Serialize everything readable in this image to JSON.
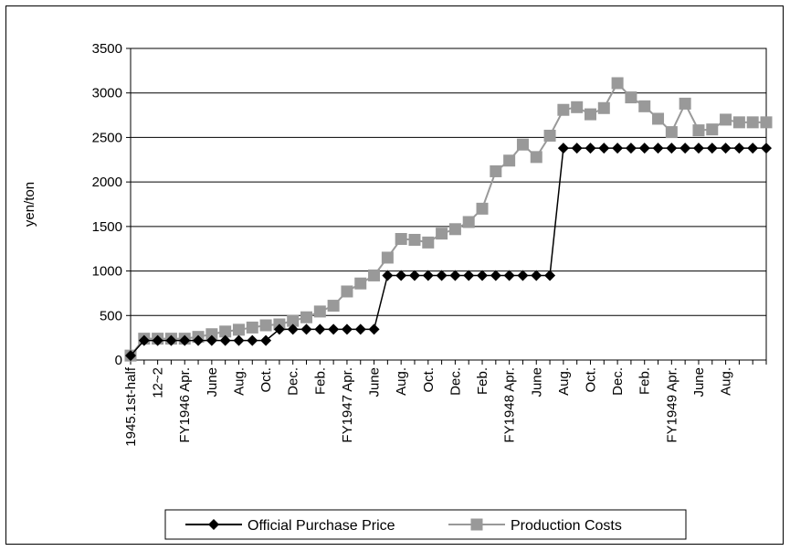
{
  "chart_data": {
    "type": "line",
    "ylabel": "yen/ton",
    "xlabel": "",
    "ylim": [
      0,
      3500
    ],
    "yticks": [
      0,
      500,
      1000,
      1500,
      2000,
      2500,
      3000,
      3500
    ],
    "grid": "horizontal",
    "legend_position": "bottom",
    "category_count": 48,
    "x_tick_labels": [
      {
        "i": 0,
        "label": "1945.1st-half"
      },
      {
        "i": 2,
        "label": "12~2"
      },
      {
        "i": 4,
        "label": "FY1946 Apr."
      },
      {
        "i": 6,
        "label": "June"
      },
      {
        "i": 8,
        "label": "Aug."
      },
      {
        "i": 10,
        "label": "Oct."
      },
      {
        "i": 12,
        "label": "Dec."
      },
      {
        "i": 14,
        "label": "Feb."
      },
      {
        "i": 16,
        "label": "FY1947 Apr."
      },
      {
        "i": 18,
        "label": "June"
      },
      {
        "i": 20,
        "label": "Aug."
      },
      {
        "i": 22,
        "label": "Oct."
      },
      {
        "i": 24,
        "label": "Dec."
      },
      {
        "i": 26,
        "label": "Feb."
      },
      {
        "i": 28,
        "label": "FY1948 Apr."
      },
      {
        "i": 30,
        "label": "June"
      },
      {
        "i": 32,
        "label": "Aug."
      },
      {
        "i": 34,
        "label": "Oct."
      },
      {
        "i": 36,
        "label": "Dec."
      },
      {
        "i": 38,
        "label": "Feb."
      },
      {
        "i": 40,
        "label": "FY1949 Apr."
      },
      {
        "i": 42,
        "label": "June"
      },
      {
        "i": 44,
        "label": "Aug."
      }
    ],
    "series": [
      {
        "name": "Official Purchase Price",
        "color": "#000000",
        "marker": "diamond",
        "values": [
          50,
          220,
          220,
          220,
          220,
          220,
          220,
          220,
          220,
          220,
          220,
          345,
          345,
          345,
          345,
          345,
          345,
          345,
          345,
          950,
          950,
          950,
          950,
          950,
          950,
          950,
          950,
          950,
          950,
          950,
          950,
          950,
          2380,
          2380,
          2380,
          2380,
          2380,
          2380,
          2380,
          2380,
          2380,
          2380,
          2380,
          2380,
          2380,
          2380,
          2380,
          2380
        ]
      },
      {
        "name": "Production Costs",
        "color": "#999999",
        "marker": "square",
        "values": [
          50,
          240,
          240,
          240,
          240,
          260,
          290,
          320,
          340,
          365,
          390,
          400,
          440,
          480,
          545,
          610,
          770,
          860,
          950,
          1150,
          1360,
          1350,
          1320,
          1420,
          1470,
          1550,
          1700,
          2120,
          2240,
          2420,
          2280,
          2520,
          2810,
          2840,
          2760,
          2830,
          3110,
          2950,
          2850,
          2710,
          2560,
          2880,
          2580,
          2590,
          2700,
          2670,
          2670,
          2670
        ]
      }
    ]
  }
}
